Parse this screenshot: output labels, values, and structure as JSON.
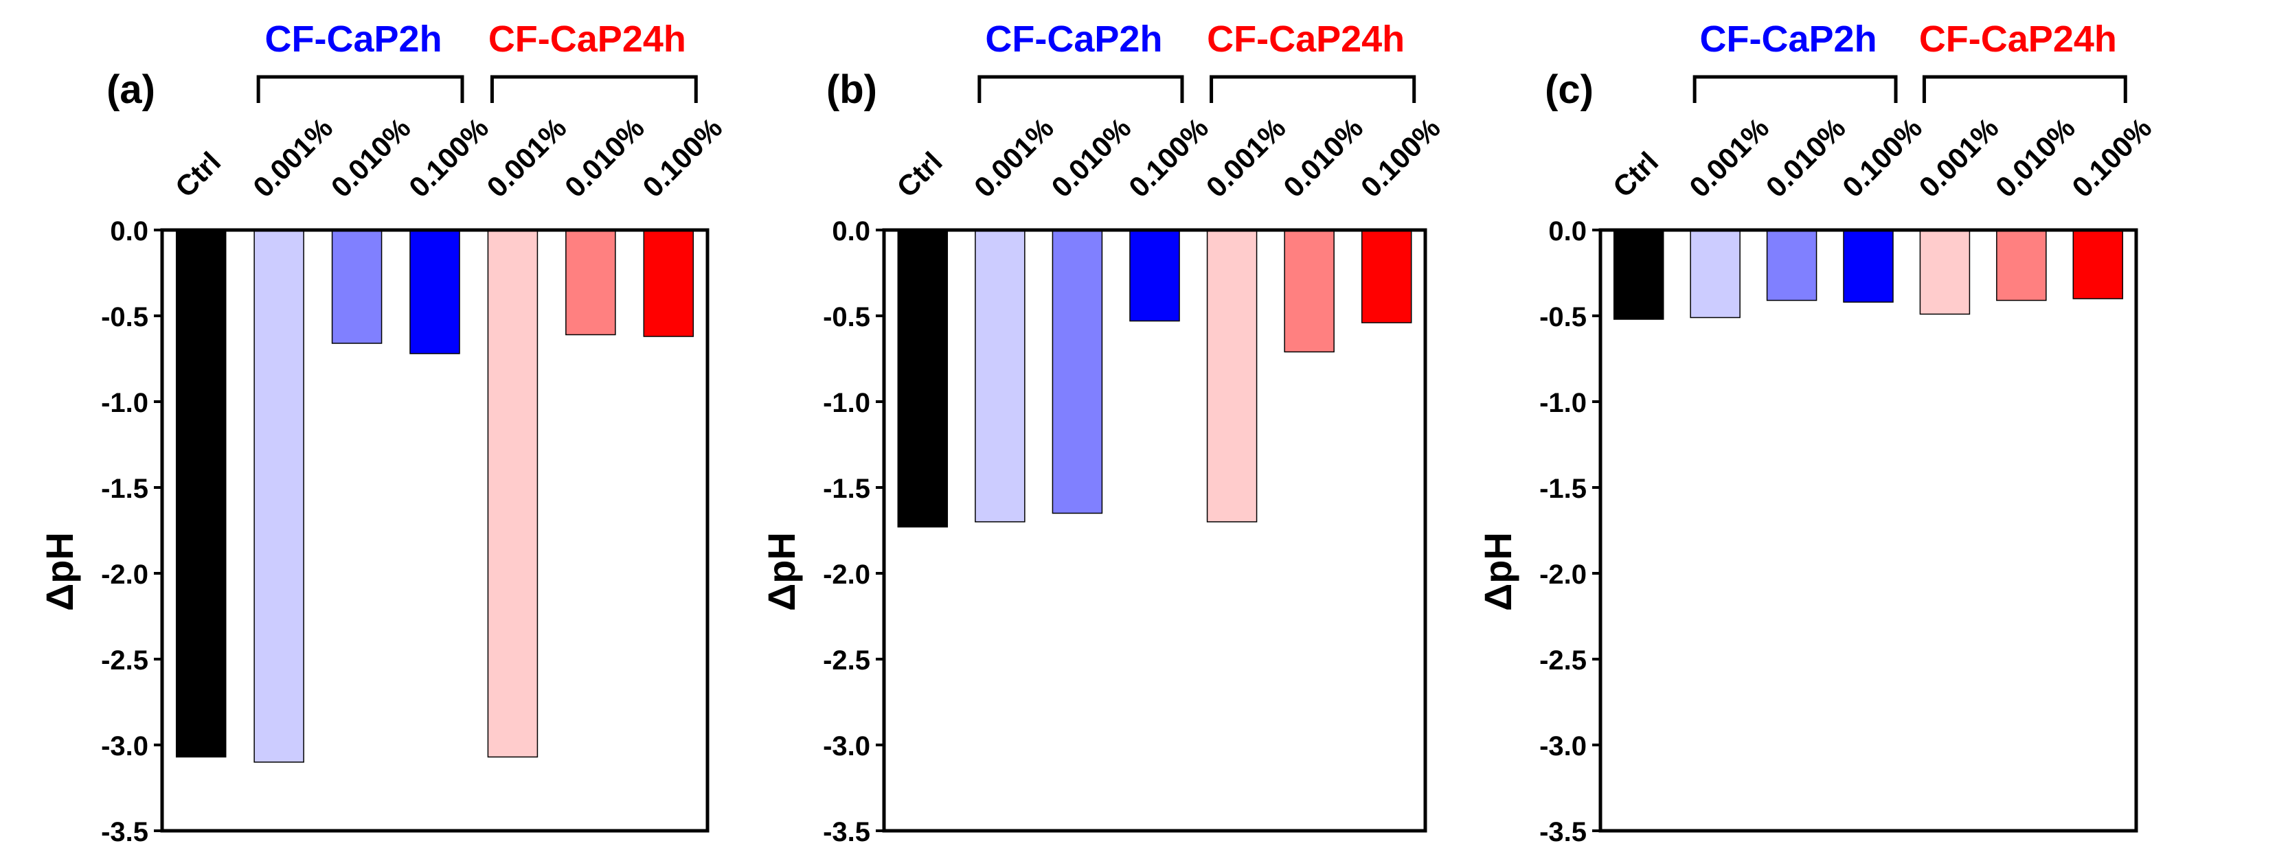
{
  "colors": {
    "ctrl": "#000000",
    "cap2h_low": "#CCCCFF",
    "cap2h_mid": "#8080FF",
    "cap2h_high": "#0000FF",
    "cap24h_low": "#FFCCCC",
    "cap24h_mid": "#FF8080",
    "cap24h_high": "#FF0000",
    "group_2h_text": "#0000FF",
    "group_24h_text": "#FF0000"
  },
  "chart_data": [
    {
      "type": "bar",
      "panel_label": "(a)",
      "categories": [
        "Ctrl",
        "0.001%",
        "0.010%",
        "0.100%",
        "0.001%",
        "0.010%",
        "0.100%"
      ],
      "groups": [
        {
          "name": "CF-CaP2h",
          "category_indices": [
            1,
            2,
            3
          ]
        },
        {
          "name": "CF-CaP24h",
          "category_indices": [
            4,
            5,
            6
          ]
        }
      ],
      "values": [
        -3.07,
        -3.1,
        -0.66,
        -0.72,
        -3.07,
        -0.61,
        -0.62
      ],
      "bar_colors": [
        "ctrl",
        "cap2h_low",
        "cap2h_mid",
        "cap2h_high",
        "cap24h_low",
        "cap24h_mid",
        "cap24h_high"
      ],
      "ylabel": "ΔpH",
      "ylim": [
        -3.5,
        0.0
      ],
      "yticks": [
        "0.0",
        "-0.5",
        "-1.0",
        "-1.5",
        "-2.0",
        "-2.5",
        "-3.0",
        "-3.5"
      ]
    },
    {
      "type": "bar",
      "panel_label": "(b)",
      "categories": [
        "Ctrl",
        "0.001%",
        "0.010%",
        "0.100%",
        "0.001%",
        "0.010%",
        "0.100%"
      ],
      "groups": [
        {
          "name": "CF-CaP2h",
          "category_indices": [
            1,
            2,
            3
          ]
        },
        {
          "name": "CF-CaP24h",
          "category_indices": [
            4,
            5,
            6
          ]
        }
      ],
      "values": [
        -1.73,
        -1.7,
        -1.65,
        -0.53,
        -1.7,
        -0.71,
        -0.54
      ],
      "bar_colors": [
        "ctrl",
        "cap2h_low",
        "cap2h_mid",
        "cap2h_high",
        "cap24h_low",
        "cap24h_mid",
        "cap24h_high"
      ],
      "ylabel": "ΔpH",
      "ylim": [
        -3.5,
        0.0
      ],
      "yticks": [
        "0.0",
        "-0.5",
        "-1.0",
        "-1.5",
        "-2.0",
        "-2.5",
        "-3.0",
        "-3.5"
      ]
    },
    {
      "type": "bar",
      "panel_label": "(c)",
      "categories": [
        "Ctrl",
        "0.001%",
        "0.010%",
        "0.100%",
        "0.001%",
        "0.010%",
        "0.100%"
      ],
      "groups": [
        {
          "name": "CF-CaP2h",
          "category_indices": [
            1,
            2,
            3
          ]
        },
        {
          "name": "CF-CaP24h",
          "category_indices": [
            4,
            5,
            6
          ]
        }
      ],
      "values": [
        -0.52,
        -0.51,
        -0.41,
        -0.42,
        -0.49,
        -0.41,
        -0.4
      ],
      "bar_colors": [
        "ctrl",
        "cap2h_low",
        "cap2h_mid",
        "cap2h_high",
        "cap24h_low",
        "cap24h_mid",
        "cap24h_high"
      ],
      "ylabel": "ΔpH",
      "ylim": [
        -3.5,
        0.0
      ],
      "yticks": [
        "0.0",
        "-0.5",
        "-1.0",
        "-1.5",
        "-2.0",
        "-2.5",
        "-3.0",
        "-3.5"
      ]
    }
  ]
}
